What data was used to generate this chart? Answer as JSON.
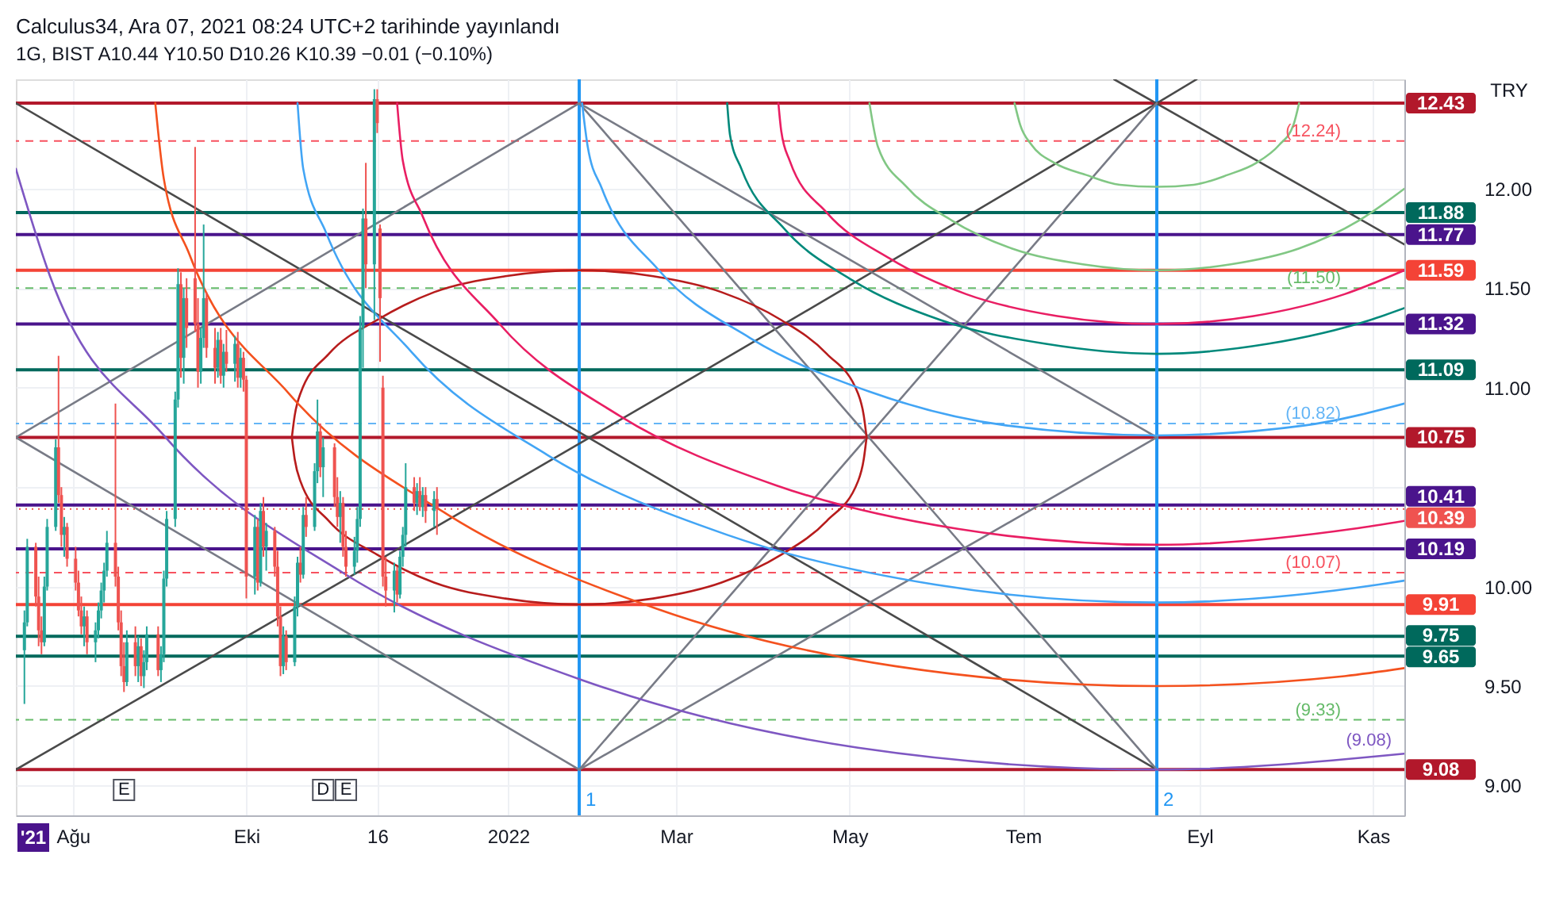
{
  "chart_data": {
    "type": "candlestick",
    "title": "Calculus34, Ara 07, 2021 08:24 UTC+2 tarihinde yayınlandı",
    "subtitle": "1G, BIST A10.44 Y10.50 D10.26 K10.39 −0.01 (−0.10%)",
    "ylabel": "TRY",
    "x": [
      "2021-07-15",
      "2021-07-16",
      "2021-07-19",
      "2021-07-20",
      "2021-07-21",
      "2021-07-22",
      "2021-07-23",
      "2021-07-26",
      "2021-07-27",
      "2021-07-28",
      "2021-07-29",
      "2021-07-30",
      "2021-08-02",
      "2021-08-03",
      "2021-08-04",
      "2021-08-05",
      "2021-08-06",
      "2021-08-09",
      "2021-08-10",
      "2021-08-11",
      "2021-08-12",
      "2021-08-13",
      "2021-08-16",
      "2021-08-17",
      "2021-08-18",
      "2021-08-19",
      "2021-08-20",
      "2021-08-23",
      "2021-08-24",
      "2021-08-25",
      "2021-08-26",
      "2021-08-27",
      "2021-08-31",
      "2021-09-01",
      "2021-09-02",
      "2021-09-03",
      "2021-09-06",
      "2021-09-07",
      "2021-09-08",
      "2021-09-09",
      "2021-09-10",
      "2021-09-13",
      "2021-09-14",
      "2021-09-15",
      "2021-09-16",
      "2021-09-17",
      "2021-09-20",
      "2021-09-21",
      "2021-09-22",
      "2021-09-23",
      "2021-09-24",
      "2021-09-27",
      "2021-09-28",
      "2021-09-29",
      "2021-09-30",
      "2021-10-01",
      "2021-10-04",
      "2021-10-05",
      "2021-10-06",
      "2021-10-07",
      "2021-10-08",
      "2021-10-11",
      "2021-10-12",
      "2021-10-13",
      "2021-10-14",
      "2021-10-15",
      "2021-10-18",
      "2021-10-19",
      "2021-10-20",
      "2021-10-21",
      "2021-10-22",
      "2021-10-25",
      "2021-10-26",
      "2021-10-27",
      "2021-10-28",
      "2021-11-01",
      "2021-11-02",
      "2021-11-03",
      "2021-11-04",
      "2021-11-05",
      "2021-11-08",
      "2021-11-09",
      "2021-11-10",
      "2021-11-11",
      "2021-11-12",
      "2021-11-15",
      "2021-11-16",
      "2021-11-17",
      "2021-11-18",
      "2021-11-19",
      "2021-11-22",
      "2021-11-23",
      "2021-11-24",
      "2021-11-25",
      "2021-11-26",
      "2021-11-29",
      "2021-11-30",
      "2021-12-01",
      "2021-12-02",
      "2021-12-03",
      "2021-12-06",
      "2021-12-07"
    ],
    "ohlc": [
      [
        9.68,
        9.88,
        9.41,
        9.82
      ],
      [
        9.82,
        10.24,
        9.8,
        10.2
      ],
      [
        10.2,
        10.22,
        9.9,
        9.95
      ],
      [
        9.95,
        10.05,
        9.7,
        9.78
      ],
      [
        9.78,
        9.85,
        9.66,
        9.72
      ],
      [
        9.72,
        10.05,
        9.7,
        10.0
      ],
      [
        10.0,
        10.34,
        9.98,
        10.3
      ],
      [
        10.3,
        10.74,
        10.28,
        10.7
      ],
      [
        10.7,
        11.16,
        10.42,
        10.46
      ],
      [
        10.46,
        10.5,
        10.2,
        10.26
      ],
      [
        10.26,
        10.35,
        10.15,
        10.3
      ],
      [
        10.3,
        10.32,
        10.1,
        10.14
      ],
      [
        10.14,
        10.2,
        9.98,
        10.02
      ],
      [
        10.02,
        10.08,
        9.85,
        9.88
      ],
      [
        9.88,
        9.95,
        9.76,
        9.8
      ],
      [
        9.8,
        9.9,
        9.7,
        9.85
      ],
      [
        9.85,
        9.88,
        9.66,
        9.72
      ],
      [
        9.72,
        9.82,
        9.62,
        9.78
      ],
      [
        9.78,
        9.92,
        9.74,
        9.88
      ],
      [
        9.88,
        10.02,
        9.84,
        9.98
      ],
      [
        9.98,
        10.12,
        9.92,
        10.08
      ],
      [
        10.08,
        10.28,
        10.05,
        10.22
      ],
      [
        10.22,
        10.92,
        10.0,
        10.05
      ],
      [
        10.05,
        10.1,
        9.78,
        9.82
      ],
      [
        9.82,
        9.88,
        9.55,
        9.6
      ],
      [
        9.6,
        9.72,
        9.47,
        9.52
      ],
      [
        9.52,
        9.78,
        9.5,
        9.72
      ],
      [
        9.72,
        9.8,
        9.55,
        9.6
      ],
      [
        9.6,
        9.75,
        9.52,
        9.7
      ],
      [
        9.7,
        9.74,
        9.5,
        9.55
      ],
      [
        9.55,
        9.68,
        9.49,
        9.62
      ],
      [
        9.62,
        9.8,
        9.58,
        9.76
      ],
      [
        9.76,
        9.8,
        9.55,
        9.58
      ],
      [
        9.58,
        9.7,
        9.52,
        9.66
      ],
      [
        9.66,
        10.08,
        9.62,
        10.04
      ],
      [
        10.04,
        10.38,
        10.0,
        10.34
      ],
      [
        10.34,
        10.98,
        10.3,
        10.94
      ],
      [
        10.94,
        11.6,
        10.9,
        11.52
      ],
      [
        11.52,
        11.58,
        11.05,
        11.15
      ],
      [
        11.15,
        11.5,
        11.02,
        11.45
      ],
      [
        11.45,
        11.55,
        11.2,
        11.3
      ],
      [
        11.55,
        12.21,
        11.28,
        11.32
      ],
      [
        11.32,
        11.45,
        11.0,
        11.08
      ],
      [
        11.08,
        11.3,
        11.02,
        11.25
      ],
      [
        11.25,
        11.82,
        11.2,
        11.45
      ],
      [
        11.45,
        11.48,
        11.15,
        11.2
      ],
      [
        11.2,
        11.3,
        11.02,
        11.1
      ],
      [
        11.1,
        11.28,
        11.05,
        11.24
      ],
      [
        11.24,
        11.3,
        11.02,
        11.06
      ],
      [
        11.06,
        11.22,
        11.0,
        11.18
      ],
      [
        11.18,
        11.29,
        11.08,
        11.12
      ],
      [
        11.12,
        11.26,
        11.03,
        11.22
      ],
      [
        11.22,
        11.28,
        11.0,
        11.05
      ],
      [
        11.05,
        11.2,
        11.0,
        11.15
      ],
      [
        11.15,
        11.18,
        10.98,
        11.04
      ],
      [
        11.04,
        11.06,
        9.94,
        10.05
      ],
      [
        10.05,
        10.36,
        9.96,
        10.3
      ],
      [
        10.3,
        10.34,
        9.98,
        10.02
      ],
      [
        10.02,
        10.42,
        10.0,
        10.38
      ],
      [
        10.38,
        10.45,
        10.15,
        10.2
      ],
      [
        10.2,
        10.32,
        10.08,
        10.28
      ],
      [
        10.28,
        10.3,
        10.05,
        10.1
      ],
      [
        10.1,
        10.18,
        9.8,
        9.85
      ],
      [
        9.85,
        9.9,
        9.55,
        9.6
      ],
      [
        9.6,
        9.8,
        9.56,
        9.75
      ],
      [
        9.75,
        9.78,
        9.58,
        9.62
      ],
      [
        9.62,
        9.95,
        9.6,
        9.9
      ],
      [
        9.9,
        10.15,
        9.85,
        10.12
      ],
      [
        10.12,
        10.2,
        10.02,
        10.06
      ],
      [
        10.06,
        10.4,
        10.04,
        10.36
      ],
      [
        10.36,
        10.45,
        10.25,
        10.3
      ],
      [
        10.3,
        10.62,
        10.28,
        10.58
      ],
      [
        10.58,
        10.94,
        10.52,
        10.78
      ],
      [
        10.78,
        10.82,
        10.55,
        10.6
      ],
      [
        10.6,
        10.75,
        10.45,
        10.7
      ],
      [
        10.7,
        10.72,
        10.4,
        10.45
      ],
      [
        10.45,
        10.55,
        10.3,
        10.35
      ],
      [
        10.35,
        10.48,
        10.22,
        10.42
      ],
      [
        10.42,
        10.45,
        10.15,
        10.2
      ],
      [
        10.2,
        10.28,
        10.05,
        10.1
      ],
      [
        10.1,
        10.25,
        10.06,
        10.18
      ],
      [
        10.18,
        10.4,
        10.12,
        10.34
      ],
      [
        10.34,
        11.36,
        10.3,
        11.3
      ],
      [
        11.3,
        11.9,
        11.1,
        11.85
      ],
      [
        11.85,
        12.13,
        11.5,
        11.62
      ],
      [
        11.62,
        12.5,
        11.34,
        12.45
      ],
      [
        12.45,
        12.5,
        12.28,
        12.33
      ],
      [
        11.8,
        11.82,
        11.13,
        11.45
      ],
      [
        11.0,
        11.06,
        10.0,
        10.05
      ],
      [
        10.05,
        10.15,
        9.9,
        9.98
      ],
      [
        9.98,
        10.12,
        9.87,
        10.08
      ],
      [
        10.08,
        10.1,
        9.92,
        9.96
      ],
      [
        9.96,
        10.18,
        9.94,
        10.15
      ],
      [
        10.15,
        10.3,
        10.1,
        10.26
      ],
      [
        10.26,
        10.62,
        10.2,
        10.5
      ],
      [
        10.5,
        10.55,
        10.38,
        10.42
      ],
      [
        10.42,
        10.52,
        10.36,
        10.48
      ],
      [
        10.48,
        10.55,
        10.38,
        10.4
      ],
      [
        10.4,
        10.5,
        10.35,
        10.46
      ],
      [
        10.46,
        10.5,
        10.32,
        10.38
      ],
      [
        10.38,
        10.48,
        10.3,
        10.44
      ],
      [
        10.44,
        10.5,
        10.26,
        10.39
      ]
    ],
    "colors": [
      "#26a69a",
      "#26a69a",
      "#ef5350",
      "#ef5350",
      "#ef5350",
      "#26a69a",
      "#26a69a",
      "#26a69a",
      "#ef5350",
      "#ef5350",
      "#26a69a",
      "#ef5350",
      "#ef5350",
      "#ef5350",
      "#ef5350",
      "#26a69a",
      "#ef5350",
      "#26a69a",
      "#26a69a",
      "#26a69a",
      "#26a69a",
      "#26a69a",
      "#ef5350",
      "#ef5350",
      "#ef5350",
      "#ef5350",
      "#26a69a",
      "#ef5350",
      "#26a69a",
      "#ef5350",
      "#26a69a",
      "#26a69a",
      "#ef5350",
      "#26a69a",
      "#26a69a",
      "#26a69a",
      "#26a69a",
      "#26a69a",
      "#ef5350",
      "#26a69a",
      "#ef5350",
      "#ef5350",
      "#ef5350",
      "#26a69a",
      "#26a69a",
      "#ef5350",
      "#ef5350",
      "#26a69a",
      "#ef5350",
      "#26a69a",
      "#ef5350",
      "#26a69a",
      "#ef5350",
      "#26a69a",
      "#ef5350",
      "#ef5350",
      "#26a69a",
      "#ef5350",
      "#26a69a",
      "#ef5350",
      "#26a69a",
      "#ef5350",
      "#ef5350",
      "#ef5350",
      "#26a69a",
      "#ef5350",
      "#26a69a",
      "#26a69a",
      "#ef5350",
      "#26a69a",
      "#ef5350",
      "#26a69a",
      "#26a69a",
      "#ef5350",
      "#26a69a",
      "#ef5350",
      "#ef5350",
      "#26a69a",
      "#ef5350",
      "#ef5350",
      "#26a69a",
      "#26a69a",
      "#26a69a",
      "#26a69a",
      "#ef5350",
      "#26a69a",
      "#ef5350",
      "#ef5350",
      "#ef5350",
      "#ef5350",
      "#26a69a",
      "#ef5350",
      "#26a69a",
      "#26a69a",
      "#26a69a",
      "#ef5350",
      "#26a69a",
      "#ef5350",
      "#26a69a",
      "#ef5350",
      "#26a69a",
      "#ef5350"
    ],
    "series": [
      {
        "type": "line",
        "color": "#4a4a4a",
        "x": [
          "2021-07-12",
          "2022-08-17"
        ],
        "values": [
          12.43,
          9.08
        ]
      },
      {
        "type": "line",
        "color": "#4a4a4a",
        "x": [
          "2021-07-12",
          "2022-08-17",
          "2022-08-31"
        ],
        "values": [
          9.08,
          12.43,
          12.55
        ]
      },
      {
        "type": "line",
        "color": "#4a4a4a",
        "x": [
          "2022-08-02",
          "2022-11-12"
        ],
        "values": [
          12.55,
          11.72
        ]
      },
      {
        "type": "line",
        "color": "#787b86",
        "x": [
          "2022-01-26",
          "2022-08-17"
        ],
        "values": [
          12.43,
          9.08
        ]
      },
      {
        "type": "line",
        "color": "#787b86",
        "x": [
          "2022-01-26",
          "2022-08-17"
        ],
        "values": [
          9.08,
          12.43
        ]
      },
      {
        "type": "line",
        "color": "#787b86",
        "x": [
          "2021-07-12",
          "2022-01-26"
        ],
        "values": [
          10.75,
          12.43
        ]
      },
      {
        "type": "line",
        "color": "#787b86",
        "x": [
          "2021-07-12",
          "2022-01-26"
        ],
        "values": [
          10.75,
          9.08
        ]
      },
      {
        "type": "line",
        "color": "#787b86",
        "x": [
          "2022-01-26",
          "2022-08-17"
        ],
        "values": [
          12.43,
          10.75
        ]
      },
      {
        "type": "line",
        "color": "#787b86",
        "x": [
          "2022-01-26",
          "2022-08-17"
        ],
        "values": [
          9.08,
          10.75
        ]
      },
      {
        "type": "line",
        "color": "#b71c1c",
        "x": [
          "2021-10-17",
          "2021-10-18",
          "2021-10-20",
          "2021-10-30",
          "2021-11-16",
          "2021-12-06",
          "2021-12-31",
          "2022-01-26",
          "2022-02-21",
          "2022-03-17",
          "2022-04-07",
          "2022-04-23",
          "2022-05-04",
          "2022-05-06",
          "2022-05-07"
        ],
        "values": [
          10.75,
          10.86,
          10.97,
          11.17,
          11.34,
          11.48,
          11.56,
          11.59,
          11.56,
          11.48,
          11.34,
          11.17,
          10.97,
          10.86,
          10.75
        ]
      },
      {
        "type": "line",
        "color": "#b71c1c",
        "x": [
          "2021-10-17",
          "2021-10-18",
          "2021-10-20",
          "2021-10-30",
          "2021-11-16",
          "2021-12-06",
          "2021-12-31",
          "2022-01-26",
          "2022-02-21",
          "2022-03-17",
          "2022-04-07",
          "2022-04-23",
          "2022-05-04",
          "2022-05-06",
          "2022-05-07"
        ],
        "values": [
          10.75,
          10.64,
          10.53,
          10.33,
          10.16,
          10.02,
          9.94,
          9.91,
          9.94,
          10.02,
          10.16,
          10.33,
          10.53,
          10.64,
          10.75
        ]
      },
      {
        "type": "line",
        "color": "#81c784",
        "x": [
          "2022-06-28",
          "2022-06-30",
          "2022-07-04",
          "2022-07-12",
          "2022-07-23",
          "2022-08-04",
          "2022-08-17",
          "2022-08-30",
          "2022-09-11",
          "2022-09-21",
          "2022-09-29",
          "2022-10-04",
          "2022-10-06"
        ],
        "values": [
          12.43,
          12.32,
          12.22,
          12.13,
          12.07,
          12.02,
          12.01,
          12.02,
          12.07,
          12.13,
          12.22,
          12.32,
          12.43
        ]
      },
      {
        "type": "line",
        "color": "#81c784",
        "x": [
          "2022-05-08",
          "2022-05-11",
          "2022-05-21",
          "2022-06-06",
          "2022-06-27",
          "2022-07-22",
          "2022-08-17",
          "2022-09-12",
          "2022-10-06",
          "2022-10-27",
          "2022-11-12"
        ],
        "values": [
          12.43,
          12.21,
          12.01,
          11.84,
          11.7,
          11.62,
          11.59,
          11.62,
          11.7,
          11.84,
          12.0
        ]
      },
      {
        "type": "line",
        "color": "#e91e63",
        "x": [
          "2022-04-06",
          "2022-04-07",
          "2022-04-10",
          "2022-04-23",
          "2022-05-15",
          "2022-06-11",
          "2022-07-13",
          "2022-08-17",
          "2022-09-20",
          "2022-10-22",
          "2022-11-12"
        ],
        "values": [
          12.43,
          12.29,
          12.14,
          11.88,
          11.65,
          11.47,
          11.36,
          11.32,
          11.36,
          11.47,
          11.59
        ]
      },
      {
        "type": "line",
        "color": "#00897b",
        "x": [
          "2022-03-19",
          "2022-03-20",
          "2022-03-24",
          "2022-04-08",
          "2022-05-02",
          "2022-06-02",
          "2022-07-09",
          "2022-08-17",
          "2022-09-25",
          "2022-10-31",
          "2022-11-12"
        ],
        "values": [
          12.43,
          12.27,
          12.1,
          11.8,
          11.54,
          11.34,
          11.22,
          11.17,
          11.22,
          11.34,
          11.4
        ]
      },
      {
        "type": "line",
        "color": "#42a5f5",
        "x": [
          "2022-01-27",
          "2022-01-29",
          "2022-02-03",
          "2022-02-23",
          "2022-03-27",
          "2022-05-08",
          "2022-06-25",
          "2022-08-17",
          "2022-10-08",
          "2022-11-12"
        ],
        "values": [
          12.43,
          12.21,
          12.0,
          11.59,
          11.25,
          10.98,
          10.81,
          10.76,
          10.81,
          10.92
        ]
      },
      {
        "type": "line",
        "color": "#e91e63",
        "x": [
          "2021-11-23",
          "2021-11-25",
          "2021-12-02",
          "2021-12-29",
          "2022-02-09",
          "2022-04-05",
          "2022-06-08",
          "2022-08-17",
          "2022-10-25",
          "2022-11-12"
        ],
        "values": [
          12.43,
          12.14,
          11.86,
          11.32,
          10.86,
          10.51,
          10.29,
          10.21,
          10.29,
          10.33
        ]
      },
      {
        "type": "line",
        "color": "#42a5f5",
        "x": [
          "2021-10-19",
          "2021-10-21",
          "2021-10-29",
          "2021-11-28",
          "2022-01-15",
          "2022-03-19",
          "2022-05-31",
          "2022-08-17",
          "2022-11-03",
          "2022-11-12"
        ],
        "values": [
          12.43,
          12.1,
          11.78,
          11.18,
          10.66,
          10.26,
          10.01,
          9.92,
          10.01,
          10.03
        ]
      },
      {
        "type": "line",
        "color": "#f4511e",
        "x": [
          "2021-08-30",
          "2021-09-02",
          "2021-09-11",
          "2021-10-16",
          "2021-12-11",
          "2022-02-22",
          "2022-05-17",
          "2022-08-17",
          "2022-10-22",
          "2022-11-12"
        ],
        "values": [
          12.43,
          12.05,
          11.67,
          10.97,
          10.36,
          9.89,
          9.6,
          9.5,
          9.55,
          9.59
        ]
      },
      {
        "type": "line",
        "name": "(9.08)",
        "color": "#7e57c2",
        "x": [
          "2021-07-12",
          "2021-07-24",
          "2021-09-02",
          "2021-11-05",
          "2022-01-27",
          "2022-05-04",
          "2022-08-17",
          "2022-11-12"
        ],
        "values": [
          12.1,
          11.56,
          10.76,
          10.06,
          9.53,
          9.19,
          9.08,
          9.16
        ]
      }
    ],
    "xlim": [
      "2021-07-12",
      "2022-11-12"
    ],
    "xticks": [
      {
        "value": "2021-08-01",
        "label": "Ağu"
      },
      {
        "value": "2021-10-01",
        "label": "Eki"
      },
      {
        "value": "2021-11-16",
        "label": "16"
      },
      {
        "value": "2022-01-01",
        "label": "2022"
      },
      {
        "value": "2022-03-01",
        "label": "Mar"
      },
      {
        "value": "2022-05-01",
        "label": "May"
      },
      {
        "value": "2022-07-01",
        "label": "Tem"
      },
      {
        "value": "2022-09-01",
        "label": "Eyl"
      },
      {
        "value": "2022-11-01",
        "label": "Kas"
      }
    ],
    "ylim": [
      8.85,
      12.55
    ],
    "yticks": [
      {
        "value": 9,
        "label": "9.00"
      },
      {
        "value": 9.5,
        "label": "9.50"
      },
      {
        "value": 10,
        "label": "10.00"
      },
      {
        "value": 10.5,
        "label": null
      },
      {
        "value": 11,
        "label": "11.00"
      },
      {
        "value": 11.5,
        "label": "11.50"
      },
      {
        "value": 12,
        "label": "12.00"
      }
    ],
    "grid": true,
    "ref_lines": [
      {
        "axis": "y",
        "value": 12.43,
        "label": "12.43",
        "color": "#b2182b",
        "line_style": "solid"
      },
      {
        "axis": "y",
        "value": 12.24,
        "label": "(12.24)",
        "color": "#f7525f",
        "line_style": "dashed"
      },
      {
        "axis": "y",
        "value": 11.88,
        "label": "11.88",
        "color": "#00695c",
        "line_style": "solid"
      },
      {
        "axis": "y",
        "value": 11.77,
        "label": "11.77",
        "color": "#4a148c",
        "line_style": "solid"
      },
      {
        "axis": "y",
        "value": 11.59,
        "label": "11.59",
        "color": "#f44336",
        "line_style": "solid"
      },
      {
        "axis": "y",
        "value": 11.5,
        "label": "(11.50)",
        "color": "#66bb6a",
        "line_style": "dashed"
      },
      {
        "axis": "y",
        "value": 11.32,
        "label": "11.32",
        "color": "#4a148c",
        "line_style": "solid"
      },
      {
        "axis": "y",
        "value": 11.09,
        "label": "11.09",
        "color": "#00695c",
        "line_style": "solid"
      },
      {
        "axis": "y",
        "value": 10.82,
        "label": "(10.82)",
        "color": "#64b5f6",
        "line_style": "dashed"
      },
      {
        "axis": "y",
        "value": 10.75,
        "label": "10.75",
        "color": "#b2182b",
        "line_style": "solid"
      },
      {
        "axis": "y",
        "value": 10.41,
        "label": "10.41",
        "color": "#4a148c",
        "line_style": "solid"
      },
      {
        "axis": "y",
        "value": 10.39,
        "label": "10.39",
        "color": "#ef5350",
        "line_style": "dotted"
      },
      {
        "axis": "y",
        "value": 10.19,
        "label": "10.19",
        "color": "#4a148c",
        "line_style": "solid"
      },
      {
        "axis": "y",
        "value": 10.07,
        "label": "(10.07)",
        "color": "#f7525f",
        "line_style": "dashed"
      },
      {
        "axis": "y",
        "value": 9.91,
        "label": "9.91",
        "color": "#f44336",
        "line_style": "solid"
      },
      {
        "axis": "y",
        "value": 9.75,
        "label": "9.75",
        "color": "#00695c",
        "line_style": "solid"
      },
      {
        "axis": "y",
        "value": 9.65,
        "label": "9.65",
        "color": "#00695c",
        "line_style": "solid"
      },
      {
        "axis": "y",
        "value": 9.33,
        "label": "(9.33)",
        "color": "#66bb6a",
        "line_style": "dashed"
      },
      {
        "axis": "y",
        "value": 9.08,
        "label": "9.08",
        "color": "#b2182b",
        "line_style": "solid"
      },
      {
        "axis": "x",
        "value": "2022-01-26",
        "label": "1",
        "color": "#2196f3",
        "line_style": "solid"
      },
      {
        "axis": "x",
        "value": "2022-08-17",
        "label": "2",
        "color": "#2196f3",
        "line_style": "solid"
      }
    ],
    "annotations": [
      "'21",
      {
        "text": "E",
        "x": "2021-08-19"
      },
      {
        "text": "D",
        "x": "2021-10-28"
      },
      {
        "text": "E",
        "x": "2021-11-05"
      }
    ]
  }
}
